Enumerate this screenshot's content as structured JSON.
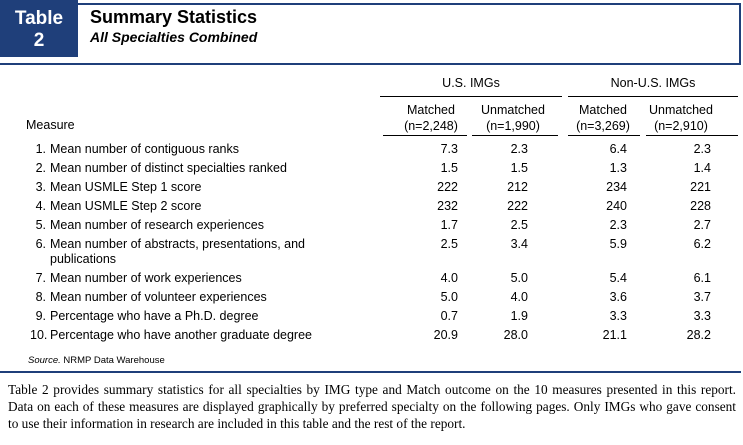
{
  "badge": {
    "label": "Table",
    "number": "2"
  },
  "title": "Summary Statistics",
  "subtitle": "All Specialties Combined",
  "groups": {
    "us": "U.S. IMGs",
    "nonus": "Non-U.S. IMGs"
  },
  "columns": {
    "measure": "Measure",
    "c1": [
      "Matched",
      "(n=2,248)"
    ],
    "c2": [
      "Unmatched",
      "(n=1,990)"
    ],
    "c3": [
      "Matched",
      "(n=3,269)"
    ],
    "c4": [
      "Unmatched",
      "(n=2,910)"
    ]
  },
  "rows": [
    {
      "idx": "1.",
      "text": "Mean number of contiguous ranks",
      "v": [
        "7.3",
        "2.3",
        "6.4",
        "2.3"
      ]
    },
    {
      "idx": "2.",
      "text": "Mean number of distinct specialties ranked",
      "v": [
        "1.5",
        "1.5",
        "1.3",
        "1.4"
      ]
    },
    {
      "idx": "3.",
      "text": "Mean USMLE Step 1 score",
      "v": [
        "222",
        "212",
        "234",
        "221"
      ]
    },
    {
      "idx": "4.",
      "text": "Mean USMLE Step 2 score",
      "v": [
        "232",
        "222",
        "240",
        "228"
      ]
    },
    {
      "idx": "5.",
      "text": "Mean number of research experiences",
      "v": [
        "1.7",
        "2.5",
        "2.3",
        "2.7"
      ]
    },
    {
      "idx": "6.",
      "text": "Mean number of abstracts, presentations, and publications",
      "v": [
        "2.5",
        "3.4",
        "5.9",
        "6.2"
      ],
      "tall": true
    },
    {
      "idx": "7.",
      "text": "Mean number of work experiences",
      "v": [
        "4.0",
        "5.0",
        "5.4",
        "6.1"
      ]
    },
    {
      "idx": "8.",
      "text": "Mean number of volunteer experiences",
      "v": [
        "5.0",
        "4.0",
        "3.6",
        "3.7"
      ]
    },
    {
      "idx": "9.",
      "text": "Percentage who have a Ph.D. degree",
      "v": [
        "0.7",
        "1.9",
        "3.3",
        "3.3"
      ]
    },
    {
      "idx": "10.",
      "text": "Percentage who have another graduate degree",
      "v": [
        "20.9",
        "28.0",
        "21.1",
        "28.2"
      ]
    }
  ],
  "source": {
    "label": "Source.",
    "text": "NRMP Data Warehouse"
  },
  "paragraph": "Table 2 provides summary statistics for all specialties by IMG type and Match outcome on the 10 measures presented in this report. Data on each of these measures are displayed graphically by preferred specialty on the following pages. Only IMGs who gave consent to use their information in research are included in this table and the rest of the report."
}
